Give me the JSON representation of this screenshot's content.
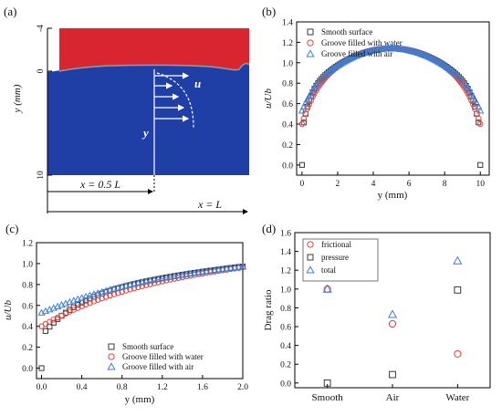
{
  "colors": {
    "black": "#3a3a3a",
    "red": "#e8413a",
    "blue": "#3d7fd6",
    "solidRed": "#d9252f",
    "solidBlue": "#1f3fa6"
  },
  "schematic": {
    "panel_label": "(a)",
    "ylabel": "y (mm)",
    "yticks": [
      "-4",
      "0",
      "10"
    ],
    "u_label": "u",
    "y_label": "y",
    "x_half": "x = 0.5 L",
    "x_full": "x = L"
  },
  "chart_data": [
    {
      "id": "b",
      "panel_label": "(b)",
      "type": "scatter",
      "xlabel": "y (mm)",
      "ylabel": "u/Ub",
      "xlim": [
        -0.3,
        10.5
      ],
      "ylim": [
        -0.1,
        1.4
      ],
      "xticks": [
        0,
        2,
        4,
        6,
        8,
        10
      ],
      "yticks": [
        0.0,
        0.2,
        0.4,
        0.6,
        0.8,
        1.0,
        1.2,
        1.4
      ],
      "ytick_labels": [
        "0.0",
        "0.2",
        "0.4",
        "0.6",
        "0.8",
        "1.0",
        "1.2",
        "1.4"
      ],
      "legend_position": "top-left",
      "series": [
        {
          "name": "Smooth surface",
          "marker": "square",
          "color": "#3a3a3a",
          "profile": "smooth"
        },
        {
          "name": "Groove filled with water",
          "marker": "circle",
          "color": "#e8413a",
          "profile": "water"
        },
        {
          "name": "Groove filled with air",
          "marker": "triangle",
          "color": "#3d7fd6",
          "profile": "air"
        }
      ]
    },
    {
      "id": "c",
      "panel_label": "(c)",
      "type": "scatter",
      "xlabel": "y (mm)",
      "ylabel": "u/Ub",
      "xlim": [
        -0.05,
        2.0
      ],
      "ylim": [
        -0.1,
        1.2
      ],
      "xticks": [
        0.0,
        0.4,
        0.8,
        1.2,
        1.6,
        2.0
      ],
      "xtick_labels": [
        "0.0",
        "0.4",
        "0.8",
        "1.2",
        "1.6",
        "2.0"
      ],
      "yticks": [
        0.0,
        0.2,
        0.4,
        0.6,
        0.8,
        1.0,
        1.2
      ],
      "ytick_labels": [
        "0.0",
        "0.2",
        "0.4",
        "0.6",
        "0.8",
        "1.0",
        "1.2"
      ],
      "legend_position": "bottom-right",
      "series": [
        {
          "name": "Smooth surface",
          "marker": "square",
          "color": "#3a3a3a",
          "profile": "smooth"
        },
        {
          "name": "Groove filled with water",
          "marker": "circle",
          "color": "#e8413a",
          "profile": "water"
        },
        {
          "name": "Groove filled with air",
          "marker": "triangle",
          "color": "#3d7fd6",
          "profile": "air"
        }
      ]
    },
    {
      "id": "d",
      "panel_label": "(d)",
      "type": "scatter",
      "xlabel": "",
      "ylabel": "Drag ratio",
      "categories": [
        "Smooth",
        "Air",
        "Water"
      ],
      "ylim": [
        -0.05,
        1.6
      ],
      "yticks": [
        0.0,
        0.2,
        0.4,
        0.6,
        0.8,
        1.0,
        1.2,
        1.4,
        1.6
      ],
      "ytick_labels": [
        "0.0",
        "0.2",
        "0.4",
        "0.6",
        "0.8",
        "1.0",
        "1.2",
        "1.4",
        "1.6"
      ],
      "legend_position": "top-left",
      "series": [
        {
          "name": "frictional",
          "marker": "circle",
          "color": "#e8413a",
          "values": [
            1.0,
            0.63,
            0.31
          ]
        },
        {
          "name": "pressure",
          "marker": "square",
          "color": "#3a3a3a",
          "values": [
            0.0,
            0.09,
            0.99
          ]
        },
        {
          "name": "total",
          "marker": "triangle",
          "color": "#3d7fd6",
          "values": [
            1.0,
            0.73,
            1.3
          ]
        }
      ]
    }
  ]
}
